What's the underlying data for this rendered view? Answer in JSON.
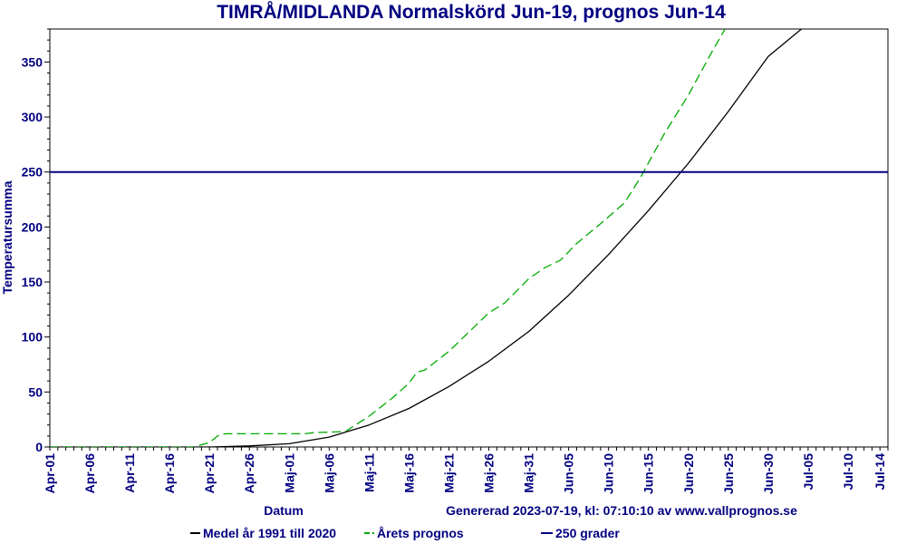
{
  "chart_data": {
    "type": "line",
    "title": "TIMRÅ/MIDLANDA Normalskörd Jun-19, prognos Jun-14",
    "xlabel": "Datum",
    "ylabel": "Temperatursumma",
    "generated_text": "Genererad 2023-07-19, kl: 07:10:10 av www.vallprognos.se",
    "ylim": [
      0,
      380
    ],
    "xlim": [
      "Apr-01",
      "Jul-15"
    ],
    "y_ticks": [
      0,
      50,
      100,
      150,
      200,
      250,
      300,
      350
    ],
    "x_tick_labels": [
      "Apr-01",
      "Apr-06",
      "Apr-11",
      "Apr-16",
      "Apr-21",
      "Apr-26",
      "Maj-01",
      "Maj-06",
      "Maj-11",
      "Maj-16",
      "Maj-21",
      "Maj-26",
      "Maj-31",
      "Jun-05",
      "Jun-10",
      "Jun-15",
      "Jun-20",
      "Jun-25",
      "Jun-30",
      "Jul-05",
      "Jul-10",
      "Jul-14"
    ],
    "grid": false,
    "legend_position": "bottom",
    "colors": {
      "background": "#ffffff",
      "text": "#000080",
      "medel": "#000000",
      "prognos": "#00aa00",
      "grader": "#000080"
    },
    "series": [
      {
        "name": "Medel år 1991 till 2020",
        "style": "solid",
        "color": "#000000",
        "x": [
          "Apr-01",
          "Apr-21",
          "Apr-26",
          "Maj-01",
          "Maj-06",
          "Maj-11",
          "Maj-16",
          "Maj-21",
          "Maj-26",
          "Maj-31",
          "Jun-05",
          "Jun-10",
          "Jun-15",
          "Jun-20",
          "Jun-25",
          "Jun-30",
          "Jul-05"
        ],
        "values": [
          0,
          0,
          1,
          3,
          9,
          20,
          35,
          55,
          78,
          105,
          138,
          175,
          215,
          258,
          305,
          355,
          385
        ]
      },
      {
        "name": "Årets prognos",
        "style": "dashed",
        "color": "#00aa00",
        "x": [
          "Apr-01",
          "Apr-19",
          "Apr-21",
          "Apr-22",
          "Apr-23",
          "Maj-03",
          "Maj-04",
          "Maj-08",
          "Maj-11",
          "Maj-14",
          "Maj-16",
          "Maj-17",
          "Maj-18",
          "Maj-21",
          "Maj-26",
          "Maj-28",
          "Maj-31",
          "Jun-02",
          "Jun-04",
          "Jun-06",
          "Jun-09",
          "Jun-12",
          "Jun-14",
          "Jun-17",
          "Jun-20",
          "Jun-23",
          "Jun-25"
        ],
        "values": [
          0,
          0,
          4,
          10,
          12,
          12,
          13,
          14,
          28,
          45,
          58,
          68,
          70,
          87,
          122,
          131,
          153,
          163,
          170,
          185,
          203,
          222,
          245,
          285,
          320,
          360,
          385
        ]
      },
      {
        "name": "250 grader",
        "style": "solid",
        "color": "#000080",
        "x": [
          "Apr-01",
          "Jul-15"
        ],
        "values": [
          250,
          250
        ]
      }
    ]
  }
}
